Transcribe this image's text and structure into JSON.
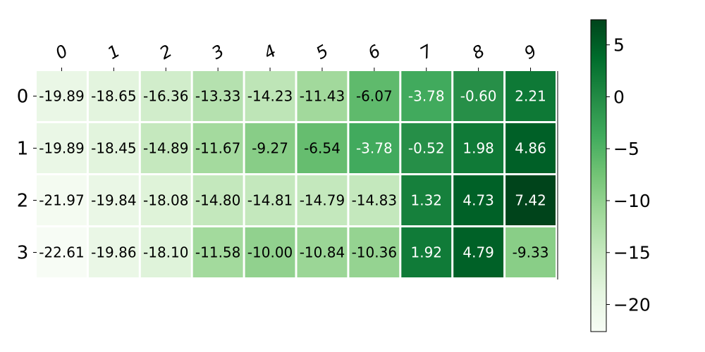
{
  "chart_data": {
    "type": "heatmap",
    "title": "",
    "xlabel": "",
    "ylabel": "",
    "x_categories": [
      "0",
      "1",
      "2",
      "3",
      "4",
      "5",
      "6",
      "7",
      "8",
      "9"
    ],
    "y_categories": [
      "0",
      "1",
      "2",
      "3"
    ],
    "values": [
      [
        -19.89,
        -18.65,
        -16.36,
        -13.33,
        -14.23,
        -11.43,
        -6.07,
        -3.78,
        -0.6,
        2.21
      ],
      [
        -19.89,
        -18.45,
        -14.89,
        -11.67,
        -9.27,
        -6.54,
        -3.78,
        -0.52,
        1.98,
        4.86
      ],
      [
        -21.97,
        -19.84,
        -18.08,
        -14.8,
        -14.81,
        -14.79,
        -14.83,
        1.32,
        4.73,
        7.42
      ],
      [
        -22.61,
        -19.86,
        -18.1,
        -11.58,
        -10.0,
        -10.84,
        -10.36,
        1.92,
        4.79,
        -9.33
      ]
    ],
    "value_format": "2 decimals",
    "x_axis_position": "top",
    "x_tick_rotation": "-30deg",
    "colormap": "Greens",
    "colorbar": {
      "range": [
        -22.61,
        7.42
      ],
      "ticks": [
        5,
        0,
        -5,
        -10,
        -15,
        -20
      ],
      "tick_labels": [
        "5",
        "0",
        "−5",
        "−10",
        "−15",
        "−20"
      ],
      "position": "right"
    },
    "grid": false,
    "cell_border_color": "#ffffff"
  }
}
